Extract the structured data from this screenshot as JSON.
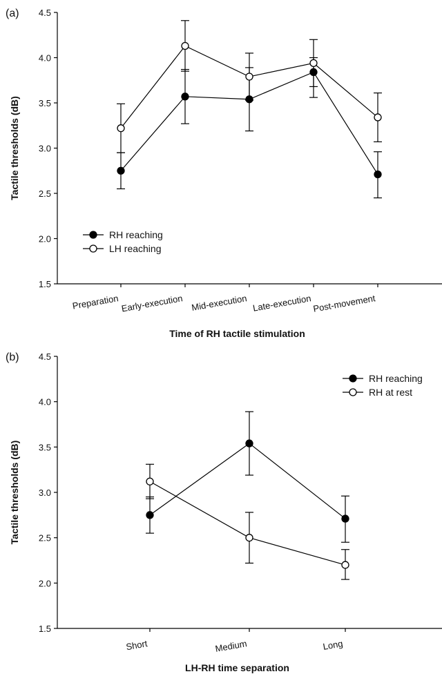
{
  "chart_data": [
    {
      "panel_label": "(a)",
      "type": "line",
      "xlabel": "Time of RH tactile stimulation",
      "ylabel": "Tactile thresholds (dB)",
      "ylim": [
        1.5,
        4.5
      ],
      "yticks": [
        1.5,
        2.0,
        2.5,
        3.0,
        3.5,
        4.0,
        4.5
      ],
      "ytick_labels": [
        "1.5",
        "2.0",
        "2.5",
        "3.0",
        "3.5",
        "4.0",
        "4.5"
      ],
      "categories": [
        "Preparation",
        "Early-execution",
        "Mid-execution",
        "Late-execution",
        "Post-movement"
      ],
      "legend_position": "lower-left",
      "grid": false,
      "series": [
        {
          "name": "RH reaching",
          "marker": "filled-circle",
          "values": [
            2.75,
            3.57,
            3.54,
            3.84,
            2.71
          ],
          "err_low": [
            2.55,
            3.27,
            3.19,
            3.68,
            2.45
          ],
          "err_high": [
            2.95,
            3.87,
            3.89,
            4.0,
            2.96
          ]
        },
        {
          "name": "LH reaching",
          "marker": "open-circle",
          "values": [
            3.22,
            4.13,
            3.79,
            3.94,
            3.34
          ],
          "err_low": [
            2.95,
            3.85,
            3.53,
            3.56,
            3.07
          ],
          "err_high": [
            3.49,
            4.41,
            4.05,
            4.2,
            3.61
          ]
        }
      ]
    },
    {
      "panel_label": "(b)",
      "type": "line",
      "xlabel": "LH-RH time separation",
      "ylabel": "Tactile thresholds (dB)",
      "ylim": [
        1.5,
        4.5
      ],
      "yticks": [
        1.5,
        2.0,
        2.5,
        3.0,
        3.5,
        4.0,
        4.5
      ],
      "ytick_labels": [
        "1.5",
        "2.0",
        "2.5",
        "3.0",
        "3.5",
        "4.0",
        "4.5"
      ],
      "categories": [
        "Short",
        "Medium",
        "Long"
      ],
      "legend_position": "top-right",
      "grid": false,
      "series": [
        {
          "name": "RH reaching",
          "marker": "filled-circle",
          "values": [
            2.75,
            3.54,
            2.71
          ],
          "err_low": [
            2.55,
            3.19,
            2.45
          ],
          "err_high": [
            2.95,
            3.89,
            2.96
          ]
        },
        {
          "name": "RH at rest",
          "marker": "open-circle",
          "values": [
            3.12,
            2.5,
            2.2
          ],
          "err_low": [
            2.93,
            2.22,
            2.04
          ],
          "err_high": [
            3.31,
            2.78,
            2.37
          ]
        }
      ]
    }
  ]
}
